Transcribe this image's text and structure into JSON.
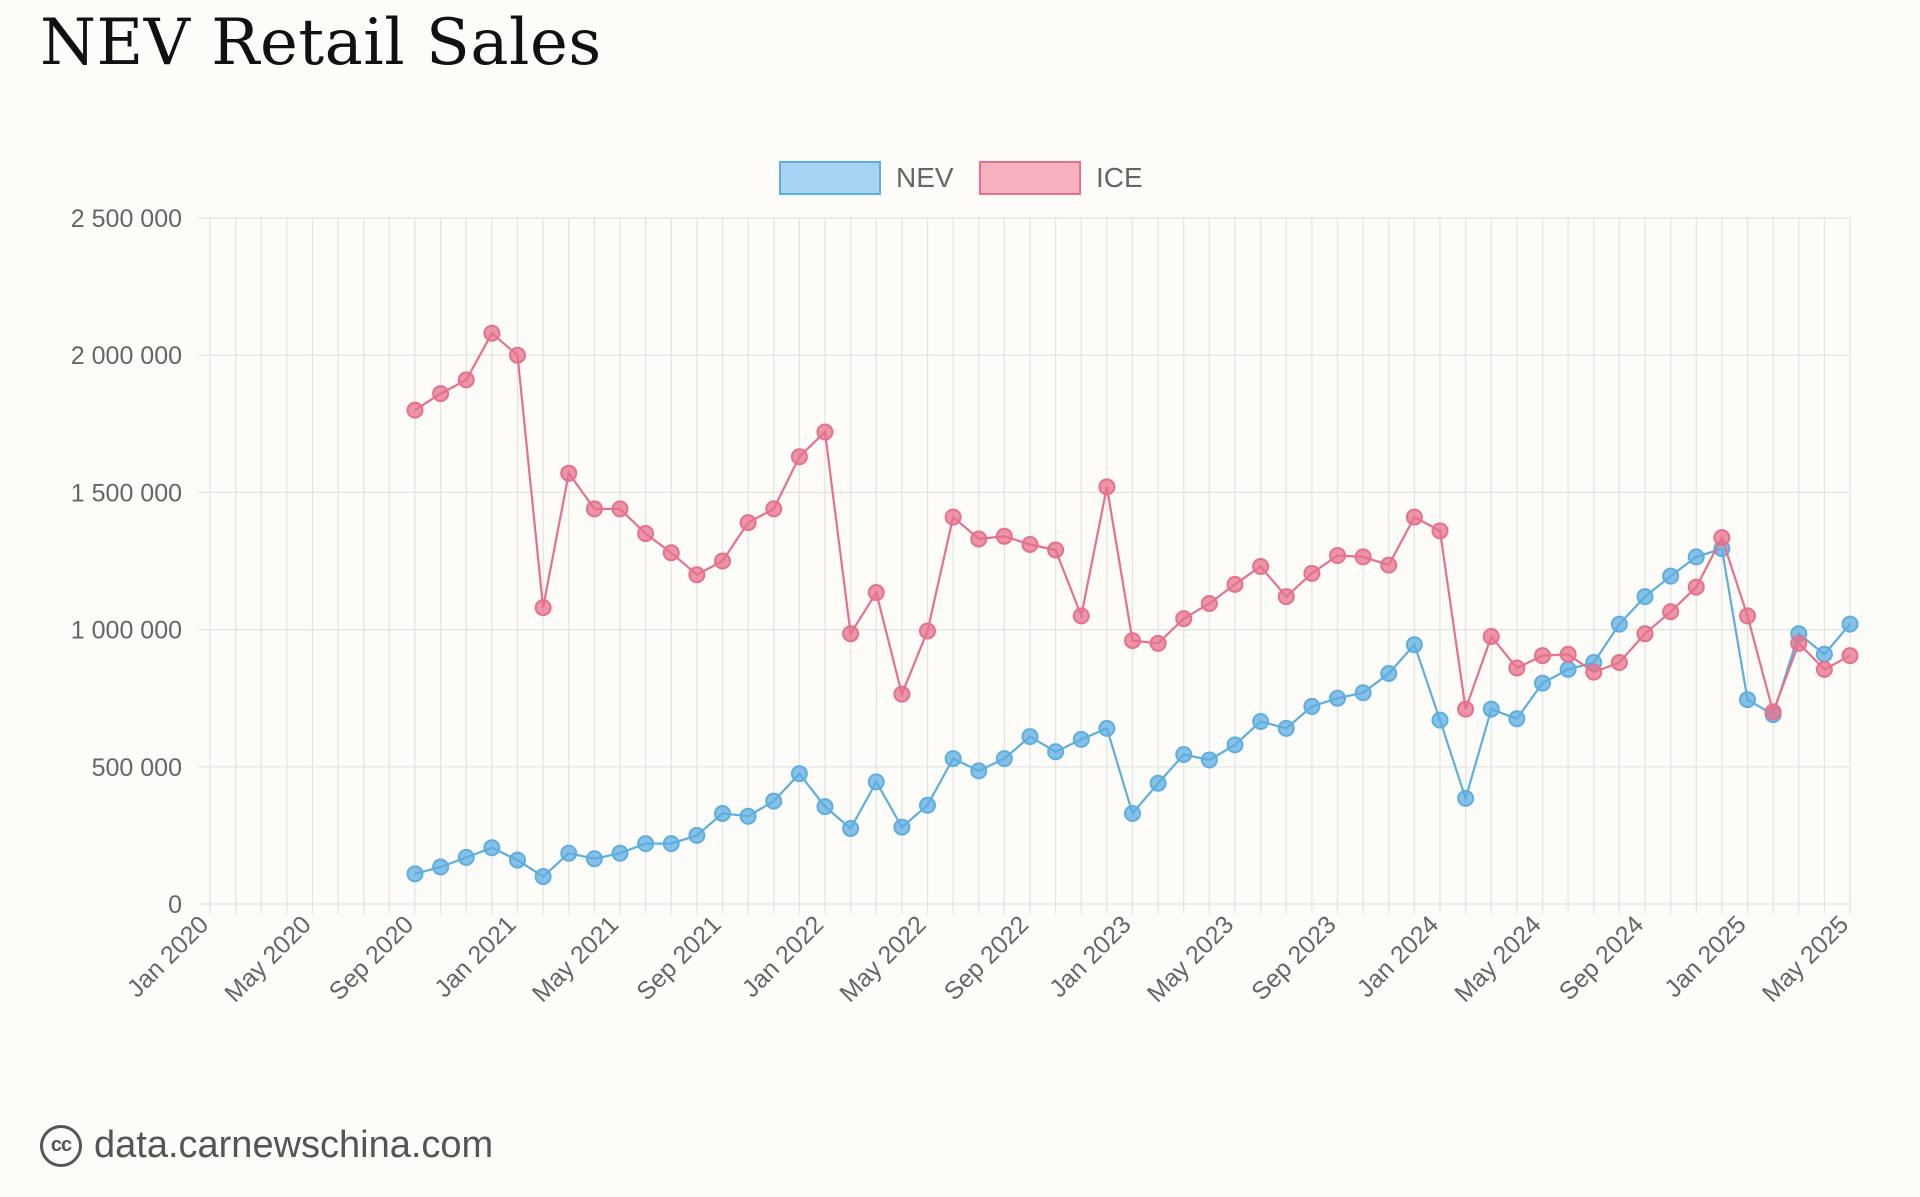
{
  "title": "NEV Retail Sales",
  "source": {
    "text": "data.carnewschina.com",
    "icon": "creative-commons-icon"
  },
  "colors": {
    "NEV_line": "#5eaee0",
    "NEV_fill": "#a7d3f3",
    "ICE_line": "#e6718c",
    "ICE_fill": "#f6b0c0",
    "grid": "#e3e3e3",
    "axis_text": "#666666"
  },
  "chart_data": {
    "type": "line",
    "title": "NEV Retail Sales",
    "xlabel": "",
    "ylabel": "",
    "x_start": "Jan 2020",
    "x_ticks": [
      "Jan 2020",
      "May 2020",
      "Sep 2020",
      "Jan 2021",
      "May 2021",
      "Sep 2021",
      "Jan 2022",
      "May 2022",
      "Sep 2022",
      "Jan 2023",
      "May 2023",
      "Sep 2023",
      "Jan 2024",
      "May 2024",
      "Sep 2024",
      "Jan 2025",
      "May 2025"
    ],
    "y_ticks": [
      "0",
      "500 000",
      "1 000 000",
      "1 500 000",
      "2 000 000",
      "2 500 000"
    ],
    "y_tick_values": [
      0,
      500000,
      1000000,
      1500000,
      2000000,
      2500000
    ],
    "ylim": [
      0,
      2500000
    ],
    "grid": true,
    "legend_position": "top-center",
    "x": [
      "Sep 2020",
      "Oct 2020",
      "Nov 2020",
      "Dec 2020",
      "Jan 2021",
      "Feb 2021",
      "Mar 2021",
      "Apr 2021",
      "May 2021",
      "Jun 2021",
      "Jul 2021",
      "Aug 2021",
      "Sep 2021",
      "Oct 2021",
      "Nov 2021",
      "Dec 2021",
      "Jan 2022",
      "Feb 2022",
      "Mar 2022",
      "Apr 2022",
      "May 2022",
      "Jun 2022",
      "Jul 2022",
      "Aug 2022",
      "Sep 2022",
      "Oct 2022",
      "Nov 2022",
      "Dec 2022",
      "Jan 2023",
      "Feb 2023",
      "Mar 2023",
      "Apr 2023",
      "May 2023",
      "Jun 2023",
      "Jul 2023",
      "Aug 2023",
      "Sep 2023",
      "Oct 2023",
      "Nov 2023",
      "Dec 2023",
      "Jan 2024",
      "Feb 2024",
      "Mar 2024",
      "Apr 2024",
      "May 2024",
      "Jun 2024",
      "Jul 2024",
      "Aug 2024",
      "Sep 2024",
      "Oct 2024",
      "Nov 2024",
      "Dec 2024",
      "Jan 2025",
      "Feb 2025",
      "Mar 2025",
      "Apr 2025",
      "May 2025"
    ],
    "series": [
      {
        "name": "NEV",
        "values": [
          110000,
          135000,
          170000,
          205000,
          160000,
          100000,
          185000,
          165000,
          185000,
          220000,
          220000,
          250000,
          330000,
          320000,
          375000,
          475000,
          355000,
          275000,
          445000,
          280000,
          360000,
          530000,
          485000,
          530000,
          610000,
          555000,
          600000,
          640000,
          330000,
          440000,
          545000,
          525000,
          580000,
          665000,
          640000,
          720000,
          750000,
          770000,
          840000,
          945000,
          670000,
          385000,
          710000,
          675000,
          805000,
          855000,
          880000,
          1020000,
          1120000,
          1195000,
          1265000,
          1295000,
          745000,
          690000,
          985000,
          910000,
          1020000
        ]
      },
      {
        "name": "ICE",
        "values": [
          1800000,
          1860000,
          1910000,
          2080000,
          2000000,
          1080000,
          1570000,
          1440000,
          1440000,
          1350000,
          1280000,
          1200000,
          1250000,
          1390000,
          1440000,
          1630000,
          1720000,
          985000,
          1135000,
          765000,
          995000,
          1410000,
          1330000,
          1340000,
          1310000,
          1290000,
          1050000,
          1520000,
          960000,
          950000,
          1040000,
          1095000,
          1165000,
          1230000,
          1120000,
          1205000,
          1270000,
          1265000,
          1235000,
          1410000,
          1360000,
          710000,
          975000,
          860000,
          905000,
          910000,
          845000,
          880000,
          985000,
          1065000,
          1155000,
          1335000,
          1050000,
          700000,
          950000,
          855000,
          905000
        ]
      }
    ]
  }
}
